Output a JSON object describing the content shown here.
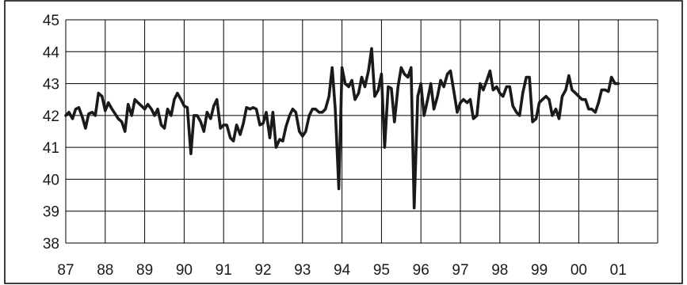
{
  "chart_data": {
    "type": "line",
    "title": "",
    "xlabel": "",
    "ylabel": "",
    "ylim": [
      38,
      45
    ],
    "yticks": [
      "38",
      "39",
      "40",
      "41",
      "42",
      "43",
      "44",
      "45"
    ],
    "xlim": [
      1987,
      2002
    ],
    "xticks": [
      "87",
      "88",
      "89",
      "90",
      "91",
      "92",
      "93",
      "94",
      "95",
      "96",
      "97",
      "98",
      "99",
      "00",
      "01"
    ],
    "grid": true,
    "legend": "none",
    "line_color": "#1a1a1a",
    "series": [
      {
        "x": [
          1987.0,
          1987.08,
          1987.17,
          1987.25,
          1987.33,
          1987.42,
          1987.5,
          1987.58,
          1987.67,
          1987.75,
          1987.83,
          1987.92,
          1988.0,
          1988.08,
          1988.17,
          1988.25,
          1988.33,
          1988.42,
          1988.5,
          1988.58,
          1988.67,
          1988.75,
          1988.83,
          1988.92,
          1989.0,
          1989.08,
          1989.17,
          1989.25,
          1989.33,
          1989.42,
          1989.5,
          1989.58,
          1989.67,
          1989.75,
          1989.83,
          1989.92,
          1990.0,
          1990.08,
          1990.17,
          1990.25,
          1990.33,
          1990.42,
          1990.5,
          1990.58,
          1990.67,
          1990.75,
          1990.83,
          1990.92,
          1991.0,
          1991.08,
          1991.17,
          1991.25,
          1991.33,
          1991.42,
          1991.5,
          1991.58,
          1991.67,
          1991.75,
          1991.83,
          1991.92,
          1992.0,
          1992.08,
          1992.17,
          1992.25,
          1992.33,
          1992.42,
          1992.5,
          1992.58,
          1992.67,
          1992.75,
          1992.83,
          1992.92,
          1993.0,
          1993.08,
          1993.17,
          1993.25,
          1993.33,
          1993.42,
          1993.5,
          1993.58,
          1993.67,
          1993.75,
          1993.83,
          1993.92,
          1994.0,
          1994.08,
          1994.17,
          1994.25,
          1994.33,
          1994.42,
          1994.5,
          1994.58,
          1994.67,
          1994.75,
          1994.83,
          1994.92,
          1995.0,
          1995.08,
          1995.17,
          1995.25,
          1995.33,
          1995.42,
          1995.5,
          1995.58,
          1995.67,
          1995.75,
          1995.83,
          1995.92,
          1996.0,
          1996.08,
          1996.17,
          1996.25,
          1996.33,
          1996.42,
          1996.5,
          1996.58,
          1996.67,
          1996.75,
          1996.83,
          1996.92,
          1997.0,
          1997.08,
          1997.17,
          1997.25,
          1997.33,
          1997.42,
          1997.5,
          1997.58,
          1997.67,
          1997.75,
          1997.83,
          1997.92,
          1998.0,
          1998.08,
          1998.17,
          1998.25,
          1998.33,
          1998.42,
          1998.5,
          1998.58,
          1998.67,
          1998.75,
          1998.83,
          1998.92,
          1999.0,
          1999.08,
          1999.17,
          1999.25,
          1999.33,
          1999.42,
          1999.5,
          1999.58,
          1999.67,
          1999.75,
          1999.83,
          1999.92,
          2000.0,
          2000.08,
          2000.17,
          2000.25,
          2000.33,
          2000.42,
          2000.5,
          2000.58,
          2000.67,
          2000.75,
          2000.83,
          2000.92,
          2001.0
        ],
        "y": [
          42.0,
          42.1,
          41.9,
          42.2,
          42.25,
          41.95,
          41.6,
          42.05,
          42.1,
          42.0,
          42.7,
          42.6,
          42.15,
          42.4,
          42.2,
          42.05,
          41.9,
          41.8,
          41.5,
          42.35,
          42.0,
          42.5,
          42.4,
          42.3,
          42.2,
          42.35,
          42.2,
          42.0,
          42.2,
          41.7,
          41.6,
          42.2,
          42.0,
          42.5,
          42.7,
          42.5,
          42.3,
          42.25,
          40.8,
          42.0,
          42.0,
          41.8,
          41.5,
          42.1,
          41.9,
          42.3,
          42.5,
          41.6,
          41.7,
          41.7,
          41.3,
          41.2,
          41.7,
          41.4,
          41.75,
          42.25,
          42.2,
          42.25,
          42.2,
          41.7,
          41.75,
          42.1,
          41.3,
          42.1,
          41.0,
          41.25,
          41.2,
          41.65,
          42.0,
          42.2,
          42.1,
          41.5,
          41.35,
          41.5,
          42.0,
          42.2,
          42.2,
          42.1,
          42.1,
          42.2,
          42.6,
          43.5,
          42.2,
          39.7,
          43.5,
          43.0,
          42.9,
          43.1,
          42.5,
          42.7,
          43.2,
          42.9,
          43.4,
          44.1,
          42.6,
          42.8,
          43.3,
          41.0,
          42.9,
          42.85,
          41.8,
          42.9,
          43.5,
          43.3,
          43.2,
          43.5,
          39.1,
          42.6,
          43.0,
          42.0,
          42.5,
          43.0,
          42.2,
          42.6,
          43.1,
          42.9,
          43.3,
          43.4,
          42.8,
          42.1,
          42.4,
          42.5,
          42.4,
          42.5,
          41.9,
          42.0,
          43.0,
          42.8,
          43.1,
          43.4,
          42.8,
          42.9,
          42.7,
          42.6,
          42.9,
          42.9,
          42.3,
          42.1,
          42.0,
          42.7,
          43.2,
          43.2,
          41.8,
          41.9,
          42.4,
          42.5,
          42.6,
          42.5,
          42.0,
          42.2,
          41.9,
          42.6,
          42.8,
          43.25,
          42.8,
          42.7,
          42.6,
          42.5,
          42.5,
          42.2,
          42.2,
          42.1,
          42.4,
          42.8,
          42.8,
          42.75,
          43.2,
          43.0,
          43.0
        ]
      }
    ]
  }
}
